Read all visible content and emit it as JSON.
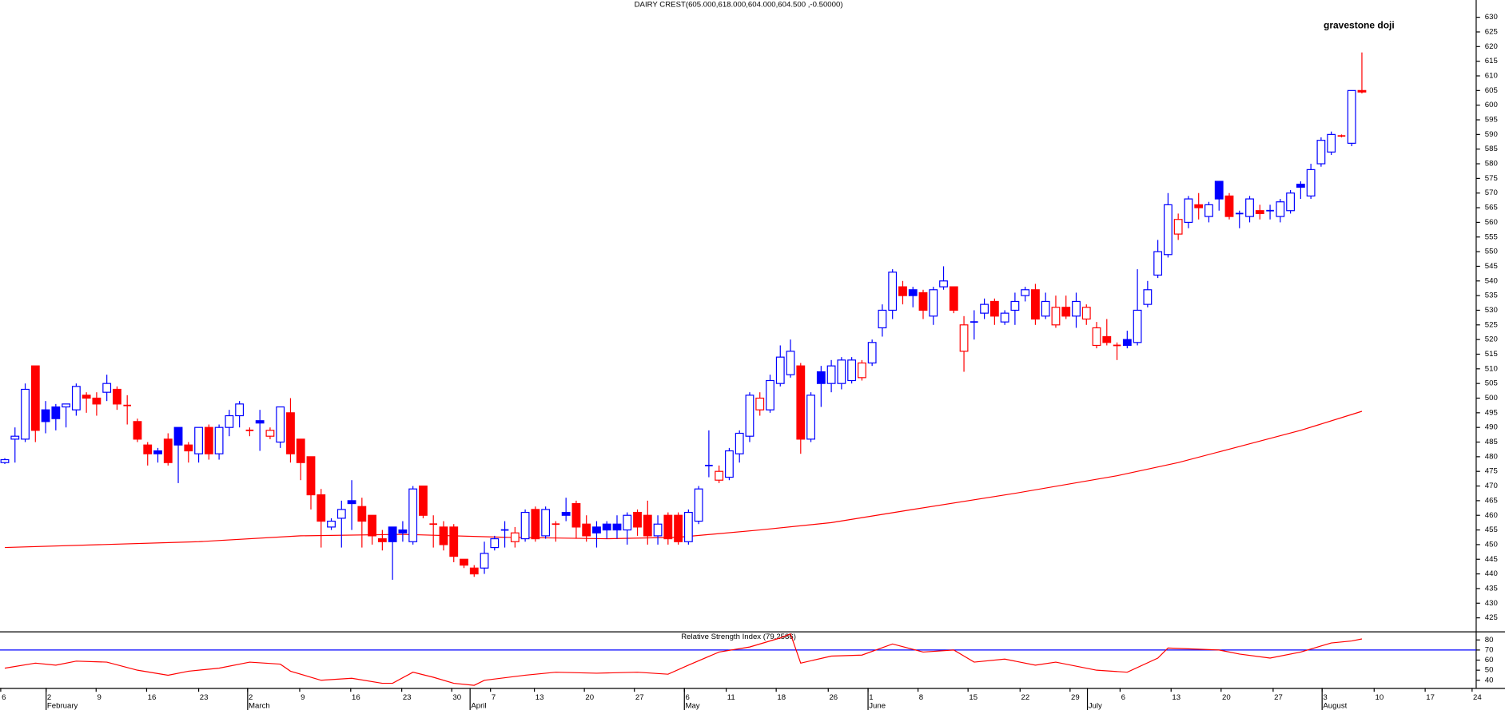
{
  "chart_data": [
    {
      "type": "candlestick",
      "title": "DAIRY CREST(605.000,618.000,604.000,604.500 ,-0.50000)",
      "annotation": "gravestone doji",
      "annotation_color": "#0000ff",
      "up_color": "#0000ff",
      "down_color": "#ff0000",
      "x": [
        1,
        2,
        3,
        4,
        5,
        6,
        7,
        8,
        9,
        10,
        11,
        12,
        13,
        14,
        15,
        16,
        17,
        18,
        19,
        20,
        21,
        22,
        23,
        24,
        25,
        26,
        27,
        28,
        29,
        30,
        31,
        32,
        33,
        34,
        35,
        36,
        37,
        38,
        39,
        40,
        41,
        42,
        43,
        44,
        45,
        46,
        47,
        48,
        49,
        50,
        51,
        52,
        53,
        54,
        55,
        56,
        57,
        58,
        59,
        60,
        61,
        62,
        63,
        64,
        65,
        66,
        67,
        68,
        69,
        70,
        71,
        72,
        73,
        74,
        75,
        76,
        77,
        78,
        79,
        80,
        81,
        82,
        83,
        84,
        85,
        86,
        87,
        88,
        89,
        90,
        91,
        92,
        93,
        94,
        95,
        96,
        97,
        98,
        99,
        100,
        101,
        102,
        103,
        104,
        105,
        106,
        107,
        108,
        109,
        110,
        111,
        112,
        113,
        114,
        115,
        116,
        117,
        118,
        119,
        120,
        121,
        122,
        123,
        124,
        125,
        126,
        127,
        128,
        129,
        130,
        131,
        132,
        133,
        134
      ],
      "open": [
        478,
        486,
        486,
        511,
        496,
        497,
        497,
        496,
        501,
        500,
        502,
        503,
        497.5,
        492,
        484,
        482,
        486,
        490,
        484,
        481,
        490,
        481,
        490,
        494,
        489,
        492.3,
        487,
        485,
        495,
        486,
        480,
        467,
        456,
        459,
        465,
        463,
        460,
        452,
        456,
        455,
        451,
        470,
        457,
        456,
        456,
        445,
        442,
        442,
        449,
        455,
        451,
        452,
        462,
        453,
        457,
        461,
        464,
        457,
        456,
        457,
        457,
        455,
        461,
        460,
        453,
        460,
        460,
        451,
        458,
        477,
        472,
        473,
        481,
        487,
        496,
        496,
        505,
        508,
        511,
        486,
        509,
        505,
        505,
        506,
        507,
        512,
        524,
        530,
        538,
        537,
        536,
        528,
        538,
        538,
        516,
        526,
        529,
        533,
        526,
        530,
        535,
        537,
        528,
        525,
        531,
        528,
        527,
        518,
        521,
        518,
        520,
        519,
        532,
        542,
        549,
        556,
        560,
        566,
        562,
        574,
        569,
        563,
        562,
        564,
        564,
        562,
        564,
        573,
        569,
        580,
        584,
        589.5,
        587,
        605
      ],
      "high": [
        479.5,
        490,
        505,
        511,
        499,
        498,
        498,
        505,
        502,
        502,
        508,
        504,
        501,
        493,
        485,
        483,
        488,
        490,
        485,
        490,
        491,
        491,
        496,
        499,
        490,
        496,
        490,
        497,
        500,
        486,
        480,
        469,
        459,
        465,
        472,
        466,
        460,
        455,
        456,
        458,
        470,
        470,
        460,
        458,
        457,
        445,
        443,
        451,
        453,
        458,
        456,
        462,
        463,
        463,
        458,
        466,
        465,
        460,
        458,
        458,
        460,
        461,
        462,
        465,
        460,
        461,
        461,
        462,
        470,
        489,
        477,
        483,
        489,
        502,
        502,
        508,
        518,
        520,
        512,
        502,
        511,
        513,
        514,
        514,
        513,
        520,
        532,
        544,
        540,
        538,
        537,
        538,
        545,
        538,
        528,
        530,
        534,
        534,
        530,
        536,
        538,
        539,
        536,
        535,
        535,
        536,
        532,
        526,
        527,
        519,
        523,
        544,
        540,
        554,
        570,
        563,
        569,
        570,
        567,
        574,
        570,
        564,
        569,
        566,
        566,
        568,
        571,
        574,
        580,
        589,
        591,
        590,
        605,
        618
      ],
      "low": [
        477.5,
        478,
        485,
        485,
        488,
        489,
        490,
        494,
        495,
        494,
        499,
        496,
        491,
        485,
        477,
        478,
        477,
        471,
        478,
        478,
        479,
        479,
        487,
        490,
        487,
        482,
        486,
        483,
        478,
        472,
        462,
        449,
        455,
        449,
        455,
        449,
        450,
        448,
        438,
        451,
        450,
        459,
        449,
        448,
        444,
        442,
        439,
        440,
        448,
        449,
        449,
        451,
        451,
        452,
        451,
        458,
        452,
        451,
        449,
        452,
        452,
        450,
        453,
        450,
        450,
        450,
        450,
        450,
        457,
        473,
        471,
        472,
        478,
        485,
        494,
        495,
        504,
        507,
        481,
        485,
        497,
        502,
        503,
        505,
        506,
        511,
        521,
        527,
        532,
        531,
        527,
        525,
        537,
        529,
        509,
        520,
        527,
        525,
        525,
        525,
        533,
        525,
        527,
        524,
        527,
        524,
        525,
        517,
        518,
        513,
        517,
        518,
        531,
        541,
        548,
        554,
        558,
        561,
        560,
        564,
        561,
        558,
        560,
        561,
        561,
        560,
        563,
        568,
        568,
        579,
        583,
        589,
        586,
        604
      ],
      "close": [
        479,
        487,
        503,
        489,
        492,
        493,
        498,
        504,
        500,
        498,
        505,
        498,
        497.5,
        486,
        481,
        481,
        478,
        484,
        482,
        490,
        481,
        490,
        494,
        498,
        489,
        491.5,
        489,
        497,
        481,
        478,
        467,
        458,
        458,
        462,
        464,
        458,
        453,
        451,
        451,
        454,
        469,
        460,
        457,
        450,
        446,
        443,
        440,
        447,
        452,
        455,
        454,
        461,
        452,
        462,
        457,
        460,
        456,
        453,
        454,
        455,
        455,
        460,
        456,
        453,
        457,
        452,
        451,
        461,
        469,
        477,
        475,
        482,
        488,
        501,
        500,
        506,
        514,
        516,
        486,
        501,
        505,
        511,
        513,
        513,
        512,
        519,
        530,
        543,
        535,
        535,
        530,
        537,
        540,
        530,
        525,
        526,
        532,
        528,
        529,
        533,
        537,
        527,
        533,
        531,
        528,
        533,
        531,
        524,
        519,
        518,
        518,
        530,
        537,
        550,
        566,
        561,
        568,
        565,
        566,
        568,
        562,
        563,
        568,
        563,
        564,
        567,
        570,
        572,
        578,
        588,
        590,
        589.5,
        605,
        604.5
      ],
      "moving_average": {
        "color": "#ff0000",
        "x": [
          1,
          20,
          30,
          40,
          50,
          60,
          67,
          75,
          82,
          90,
          100,
          110,
          116,
          122,
          128,
          134
        ],
        "values": [
          449,
          451,
          453,
          453.5,
          452.5,
          452,
          452.5,
          455,
          457.5,
          462,
          467.5,
          473.5,
          478,
          483.5,
          489,
          495.5
        ]
      },
      "xlim": [
        0.53,
        145.2
      ],
      "ylim": [
        420.4,
        635.9
      ],
      "yticks": [
        425,
        430,
        435,
        440,
        445,
        450,
        455,
        460,
        465,
        470,
        475,
        480,
        485,
        490,
        495,
        500,
        505,
        510,
        515,
        520,
        525,
        530,
        535,
        540,
        545,
        550,
        555,
        560,
        565,
        570,
        575,
        580,
        585,
        590,
        595,
        600,
        605,
        610,
        615,
        620,
        625,
        630
      ]
    },
    {
      "type": "line",
      "title": "Relative Strength Index (79.2586)",
      "color": "#ff0000",
      "reference_line": 70,
      "reference_color": "#0000ff",
      "x": [
        1,
        4,
        6,
        8,
        11,
        14,
        17,
        19,
        22,
        25,
        28,
        29,
        32,
        35,
        38,
        39,
        41,
        43,
        45,
        47,
        48,
        52,
        55,
        59,
        63,
        66,
        68,
        71,
        74,
        77,
        78,
        79,
        82,
        85,
        88,
        91,
        94,
        96,
        99,
        102,
        104,
        108,
        111,
        114,
        115,
        120,
        122,
        125,
        128,
        131,
        133,
        134
      ],
      "values": [
        52,
        57,
        55,
        59,
        58,
        50,
        45,
        49,
        52,
        58,
        56,
        49,
        40,
        42,
        37,
        37,
        48,
        43,
        37,
        35,
        40,
        45,
        48,
        47,
        48,
        46,
        55,
        68,
        73,
        82,
        86,
        57,
        64,
        65,
        76,
        68,
        70,
        58,
        61,
        55,
        58,
        50,
        48,
        62,
        72,
        70,
        66,
        62,
        68,
        77,
        79,
        81
      ],
      "xlim": [
        0.53,
        145.2
      ],
      "ylim": [
        32.4,
        87.6
      ],
      "yticks": [
        40,
        50,
        60,
        70,
        80
      ],
      "xticks": [
        {
          "value": 0.6,
          "label": "6"
        },
        {
          "value": 5.05,
          "label": "2"
        },
        {
          "value": 9.95,
          "label": "9"
        },
        {
          "value": 14.9,
          "label": "16"
        },
        {
          "value": 20.0,
          "label": "23"
        },
        {
          "value": 24.8,
          "label": "2"
        },
        {
          "value": 29.9,
          "label": "9"
        },
        {
          "value": 34.9,
          "label": "16"
        },
        {
          "value": 39.9,
          "label": "23"
        },
        {
          "value": 44.8,
          "label": "30"
        },
        {
          "value": 48.6,
          "label": "7"
        },
        {
          "value": 52.9,
          "label": "13"
        },
        {
          "value": 57.8,
          "label": "20"
        },
        {
          "value": 62.7,
          "label": "27"
        },
        {
          "value": 67.6,
          "label": "6"
        },
        {
          "value": 71.7,
          "label": "11"
        },
        {
          "value": 76.6,
          "label": "18"
        },
        {
          "value": 81.7,
          "label": "26"
        },
        {
          "value": 85.6,
          "label": "1"
        },
        {
          "value": 90.5,
          "label": "8"
        },
        {
          "value": 95.4,
          "label": "15"
        },
        {
          "value": 100.5,
          "label": "22"
        },
        {
          "value": 105.4,
          "label": "29"
        },
        {
          "value": 110.3,
          "label": "6"
        },
        {
          "value": 115.3,
          "label": "13"
        },
        {
          "value": 120.2,
          "label": "20"
        },
        {
          "value": 125.3,
          "label": "27"
        },
        {
          "value": 130.1,
          "label": "3"
        },
        {
          "value": 135.2,
          "label": "10"
        },
        {
          "value": 140.2,
          "label": "17"
        },
        {
          "value": 144.8,
          "label": "24"
        }
      ],
      "month_ticks": [
        {
          "value": 5.05,
          "label": "February"
        },
        {
          "value": 24.8,
          "label": "March"
        },
        {
          "value": 46.6,
          "label": "April"
        },
        {
          "value": 67.6,
          "label": "May"
        },
        {
          "value": 85.6,
          "label": "June"
        },
        {
          "value": 107.1,
          "label": "July"
        },
        {
          "value": 130.1,
          "label": "August"
        }
      ]
    }
  ]
}
